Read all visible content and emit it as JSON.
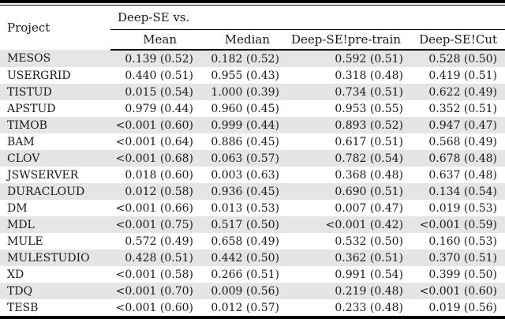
{
  "table": {
    "project_header": "Project",
    "group_header": "Deep-SE vs.",
    "columns": [
      "Mean",
      "Median",
      "Deep-SE!pre-train",
      "Deep-SE!Cut"
    ],
    "rows": [
      {
        "project": "MESOS",
        "values": [
          "0.139 (0.52)",
          "0.182 (0.52)",
          "0.592 (0.51)",
          "0.528 (0.50)"
        ]
      },
      {
        "project": "USERGRID",
        "values": [
          "0.440 (0.51)",
          "0.955 (0.43)",
          "0.318 (0.48)",
          "0.419 (0.51)"
        ]
      },
      {
        "project": "TISTUD",
        "values": [
          "0.015 (0.54)",
          "1.000 (0.39)",
          "0.734 (0.51)",
          "0.622 (0.49)"
        ]
      },
      {
        "project": "APSTUD",
        "values": [
          "0.979 (0.44)",
          "0.960 (0.45)",
          "0.953 (0.55)",
          "0.352 (0.51)"
        ]
      },
      {
        "project": "TIMOB",
        "values": [
          "<0.001 (0.60)",
          "0.999 (0.44)",
          "0.893 (0.52)",
          "0.947 (0.47)"
        ]
      },
      {
        "project": "BAM",
        "values": [
          "<0.001 (0.64)",
          "0.886 (0.45)",
          "0.617 (0.51)",
          "0.568 (0.49)"
        ]
      },
      {
        "project": "CLOV",
        "values": [
          "<0.001 (0.68)",
          "0.063 (0.57)",
          "0.782 (0.54)",
          "0.678 (0.48)"
        ]
      },
      {
        "project": "JSWSERVER",
        "values": [
          "0.018 (0.60)",
          "0.003 (0.63)",
          "0.368 (0.48)",
          "0.637 (0.48)"
        ]
      },
      {
        "project": "DURACLOUD",
        "values": [
          "0.012 (0.58)",
          "0.936 (0.45)",
          "0.690 (0.51)",
          "0.134 (0.54)"
        ]
      },
      {
        "project": "DM",
        "values": [
          "<0.001 (0.66)",
          "0.013 (0.53)",
          "0.007 (0.47)",
          "0.019 (0.53)"
        ]
      },
      {
        "project": "MDL",
        "values": [
          "<0.001 (0.75)",
          "0.517 (0.50)",
          "<0.001 (0.42)",
          "<0.001 (0.59)"
        ]
      },
      {
        "project": "MULE",
        "values": [
          "0.572 (0.49)",
          "0.658 (0.49)",
          "0.532 (0.50)",
          "0.160 (0.53)"
        ]
      },
      {
        "project": "MULESTUDIO",
        "values": [
          "0.428 (0.51)",
          "0.442 (0.50)",
          "0.362 (0.51)",
          "0.370 (0.51)"
        ]
      },
      {
        "project": "XD",
        "values": [
          "<0.001 (0.58)",
          "0.266 (0.51)",
          "0.991 (0.54)",
          "0.399 (0.50)"
        ]
      },
      {
        "project": "TDQ",
        "values": [
          "<0.001 (0.70)",
          "0.009 (0.56)",
          "0.219 (0.48)",
          "<0.001 (0.60)"
        ]
      },
      {
        "project": "TESB",
        "values": [
          "<0.001 (0.60)",
          "0.012 (0.57)",
          "0.233 (0.48)",
          "0.019 (0.56)"
        ]
      }
    ]
  },
  "colors": {
    "stripe": "#e5e5e5",
    "rule": "#000000",
    "text": "#1a1a1a",
    "background": "#ffffff"
  }
}
